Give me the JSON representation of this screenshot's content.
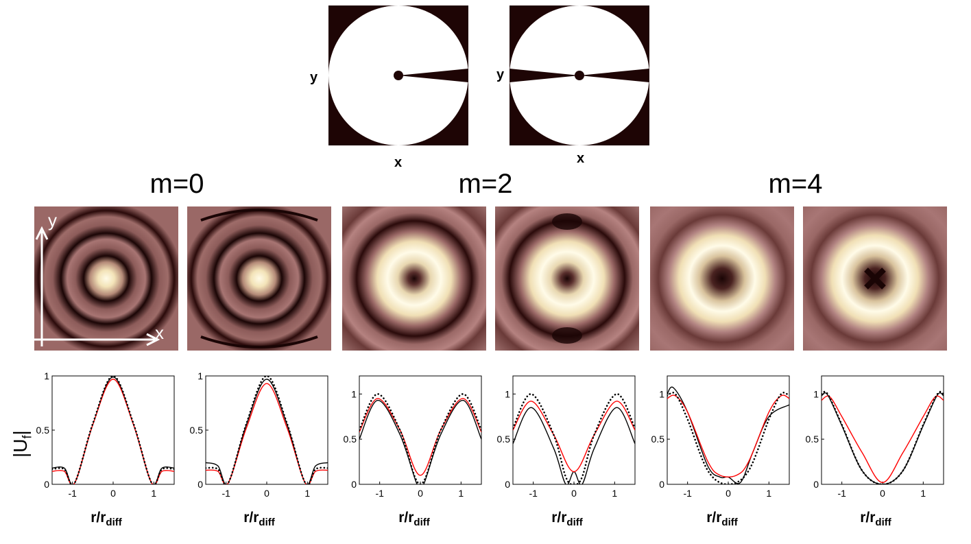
{
  "masks": [
    {
      "x_label": "x",
      "y_label": "y",
      "slits": 1
    },
    {
      "x_label": "x",
      "y_label": "y",
      "slits": 2
    }
  ],
  "columns": [
    {
      "label": "m=0"
    },
    {
      "label": "m=2"
    },
    {
      "label": "m=4"
    }
  ],
  "axis_arrows": {
    "x": "x",
    "y": "y"
  },
  "plots": {
    "ylabel": "|U_f|",
    "ylabel_main": "|U",
    "ylabel_sub": "f",
    "ylabel_end": "|",
    "xlabel_main": "r/r",
    "xlabel_sub": "diff"
  },
  "chart_data": [
    {
      "type": "line",
      "panel": 1,
      "m": 0,
      "xlim": [
        -1.5,
        1.5
      ],
      "ylim": [
        0,
        1
      ],
      "xticks": [
        "-1",
        "0",
        "1"
      ],
      "yticks": [
        "0",
        "0.5",
        "1"
      ],
      "series": [
        {
          "color": "#000000",
          "style": "solid",
          "points": [
            [
              -1.5,
              0.15
            ],
            [
              -1.2,
              0.15
            ],
            [
              -0.95,
              0.01
            ],
            [
              -0.5,
              0.55
            ],
            [
              0,
              0.99
            ],
            [
              0.5,
              0.55
            ],
            [
              0.95,
              0.01
            ],
            [
              1.2,
              0.15
            ],
            [
              1.5,
              0.15
            ]
          ]
        },
        {
          "color": "#ff0000",
          "style": "solid",
          "points": [
            [
              -1.5,
              0.12
            ],
            [
              -1.2,
              0.12
            ],
            [
              -0.95,
              0.01
            ],
            [
              -0.5,
              0.55
            ],
            [
              0,
              0.97
            ],
            [
              0.5,
              0.55
            ],
            [
              0.95,
              0.01
            ],
            [
              1.2,
              0.12
            ],
            [
              1.5,
              0.12
            ]
          ]
        },
        {
          "color": "#000000",
          "style": "dotted",
          "points": [
            [
              -1.5,
              0.14
            ],
            [
              -1.2,
              0.14
            ],
            [
              -0.95,
              0.01
            ],
            [
              -0.5,
              0.56
            ],
            [
              0,
              1.0
            ],
            [
              0.5,
              0.56
            ],
            [
              0.95,
              0.01
            ],
            [
              1.2,
              0.14
            ],
            [
              1.5,
              0.14
            ]
          ]
        }
      ]
    },
    {
      "type": "line",
      "panel": 2,
      "m": 0,
      "xlim": [
        -1.5,
        1.5
      ],
      "ylim": [
        0,
        1
      ],
      "xticks": [
        "-1",
        "0",
        "1"
      ],
      "yticks": [
        "0",
        "0.5",
        "1"
      ],
      "series": [
        {
          "color": "#000000",
          "style": "solid",
          "points": [
            [
              -1.5,
              0.2
            ],
            [
              -1.2,
              0.17
            ],
            [
              -0.95,
              0.01
            ],
            [
              -0.5,
              0.55
            ],
            [
              0,
              0.97
            ],
            [
              0.5,
              0.55
            ],
            [
              0.95,
              0.01
            ],
            [
              1.2,
              0.17
            ],
            [
              1.5,
              0.2
            ]
          ]
        },
        {
          "color": "#ff0000",
          "style": "solid",
          "points": [
            [
              -1.5,
              0.13
            ],
            [
              -1.2,
              0.12
            ],
            [
              -0.95,
              0.01
            ],
            [
              -0.5,
              0.52
            ],
            [
              0,
              0.93
            ],
            [
              0.5,
              0.52
            ],
            [
              0.95,
              0.01
            ],
            [
              1.2,
              0.12
            ],
            [
              1.5,
              0.13
            ]
          ]
        },
        {
          "color": "#000000",
          "style": "dotted",
          "points": [
            [
              -1.5,
              0.15
            ],
            [
              -1.2,
              0.14
            ],
            [
              -0.95,
              0.01
            ],
            [
              -0.5,
              0.56
            ],
            [
              0,
              1.0
            ],
            [
              0.5,
              0.56
            ],
            [
              0.95,
              0.01
            ],
            [
              1.2,
              0.14
            ],
            [
              1.5,
              0.15
            ]
          ]
        }
      ]
    },
    {
      "type": "line",
      "panel": 3,
      "m": 2,
      "xlim": [
        -1.5,
        1.5
      ],
      "ylim": [
        0,
        1.2
      ],
      "xticks": [
        "-1",
        "0",
        "1"
      ],
      "yticks": [
        "0",
        "0.5",
        "1"
      ],
      "series": [
        {
          "color": "#000000",
          "style": "solid",
          "points": [
            [
              -1.5,
              0.5
            ],
            [
              -1.05,
              0.93
            ],
            [
              -0.5,
              0.55
            ],
            [
              -0.1,
              0.02
            ],
            [
              0,
              0.0
            ],
            [
              0.1,
              0.02
            ],
            [
              0.5,
              0.55
            ],
            [
              1.05,
              0.93
            ],
            [
              1.5,
              0.5
            ]
          ]
        },
        {
          "color": "#ff0000",
          "style": "solid",
          "points": [
            [
              -1.5,
              0.58
            ],
            [
              -1.05,
              0.95
            ],
            [
              -0.5,
              0.6
            ],
            [
              0,
              0.1
            ],
            [
              0.5,
              0.6
            ],
            [
              1.05,
              0.95
            ],
            [
              1.5,
              0.58
            ]
          ]
        },
        {
          "color": "#000000",
          "style": "dotted",
          "points": [
            [
              -1.5,
              0.6
            ],
            [
              -1.05,
              1.0
            ],
            [
              -0.5,
              0.6
            ],
            [
              0,
              0.0
            ],
            [
              0.5,
              0.6
            ],
            [
              1.05,
              1.0
            ],
            [
              1.5,
              0.6
            ]
          ]
        }
      ]
    },
    {
      "type": "line",
      "panel": 4,
      "m": 2,
      "xlim": [
        -1.5,
        1.5
      ],
      "ylim": [
        0,
        1.2
      ],
      "xticks": [
        "-1",
        "0",
        "1"
      ],
      "yticks": [
        "0",
        "0.5",
        "1"
      ],
      "series": [
        {
          "color": "#000000",
          "style": "solid",
          "points": [
            [
              -1.5,
              0.45
            ],
            [
              -1.05,
              0.85
            ],
            [
              -0.5,
              0.4
            ],
            [
              -0.2,
              0.0
            ],
            [
              0,
              0.14
            ],
            [
              0.2,
              0.0
            ],
            [
              0.5,
              0.4
            ],
            [
              1.05,
              0.85
            ],
            [
              1.5,
              0.45
            ]
          ]
        },
        {
          "color": "#ff0000",
          "style": "solid",
          "points": [
            [
              -1.5,
              0.6
            ],
            [
              -1.05,
              0.92
            ],
            [
              -0.5,
              0.55
            ],
            [
              0,
              0.14
            ],
            [
              0.5,
              0.55
            ],
            [
              1.05,
              0.92
            ],
            [
              1.5,
              0.6
            ]
          ]
        },
        {
          "color": "#000000",
          "style": "dotted",
          "points": [
            [
              -1.5,
              0.62
            ],
            [
              -1.05,
              1.0
            ],
            [
              -0.5,
              0.55
            ],
            [
              -0.2,
              0.08
            ],
            [
              0,
              0.0
            ],
            [
              0.2,
              0.08
            ],
            [
              0.5,
              0.55
            ],
            [
              1.05,
              1.0
            ],
            [
              1.5,
              0.62
            ]
          ]
        }
      ]
    },
    {
      "type": "line",
      "panel": 5,
      "m": 4,
      "xlim": [
        -1.5,
        1.5
      ],
      "ylim": [
        0,
        1.2
      ],
      "xticks": [
        "-1",
        "0",
        "1"
      ],
      "yticks": [
        "0",
        "0.5",
        "1"
      ],
      "series": [
        {
          "color": "#000000",
          "style": "solid",
          "points": [
            [
              -1.5,
              1.0
            ],
            [
              -1.35,
              1.07
            ],
            [
              -1.0,
              0.8
            ],
            [
              -0.5,
              0.2
            ],
            [
              -0.2,
              0.08
            ],
            [
              0,
              0.08
            ],
            [
              0.3,
              0.02
            ],
            [
              0.6,
              0.35
            ],
            [
              1.0,
              0.75
            ],
            [
              1.5,
              0.88
            ]
          ]
        },
        {
          "color": "#ff0000",
          "style": "solid",
          "points": [
            [
              -1.5,
              0.95
            ],
            [
              -1.3,
              0.98
            ],
            [
              -1.0,
              0.8
            ],
            [
              -0.5,
              0.25
            ],
            [
              -0.2,
              0.1
            ],
            [
              0.2,
              0.1
            ],
            [
              0.5,
              0.25
            ],
            [
              1.0,
              0.8
            ],
            [
              1.3,
              0.98
            ],
            [
              1.5,
              0.95
            ]
          ]
        },
        {
          "color": "#000000",
          "style": "dotted",
          "points": [
            [
              -1.5,
              0.98
            ],
            [
              -1.3,
              1.0
            ],
            [
              -1.0,
              0.72
            ],
            [
              -0.5,
              0.15
            ],
            [
              0,
              0.0
            ],
            [
              0.5,
              0.15
            ],
            [
              1.0,
              0.72
            ],
            [
              1.3,
              1.0
            ],
            [
              1.5,
              0.98
            ]
          ]
        }
      ]
    },
    {
      "type": "line",
      "panel": 6,
      "m": 4,
      "xlim": [
        -1.5,
        1.5
      ],
      "ylim": [
        0,
        1.2
      ],
      "xticks": [
        "-1",
        "0",
        "1"
      ],
      "yticks": [
        "0",
        "0.5",
        "1"
      ],
      "series": [
        {
          "color": "#000000",
          "style": "solid",
          "points": [
            [
              -1.5,
              0.98
            ],
            [
              -1.35,
              0.99
            ],
            [
              -1.0,
              0.65
            ],
            [
              -0.5,
              0.15
            ],
            [
              0,
              0.0
            ],
            [
              0.5,
              0.15
            ],
            [
              1.0,
              0.65
            ],
            [
              1.35,
              0.99
            ],
            [
              1.5,
              0.98
            ]
          ]
        },
        {
          "color": "#ff0000",
          "style": "solid",
          "points": [
            [
              -1.5,
              0.93
            ],
            [
              -1.3,
              0.97
            ],
            [
              -1.0,
              0.75
            ],
            [
              -0.5,
              0.35
            ],
            [
              0,
              0.02
            ],
            [
              0.5,
              0.35
            ],
            [
              1.0,
              0.75
            ],
            [
              1.3,
              0.97
            ],
            [
              1.5,
              0.93
            ]
          ]
        },
        {
          "color": "#000000",
          "style": "dotted",
          "points": [
            [
              -1.5,
              1.0
            ],
            [
              -1.35,
              1.0
            ],
            [
              -1.0,
              0.66
            ],
            [
              -0.5,
              0.15
            ],
            [
              0,
              0.0
            ],
            [
              0.5,
              0.15
            ],
            [
              1.0,
              0.66
            ],
            [
              1.35,
              1.0
            ],
            [
              1.5,
              1.0
            ]
          ]
        }
      ]
    }
  ]
}
